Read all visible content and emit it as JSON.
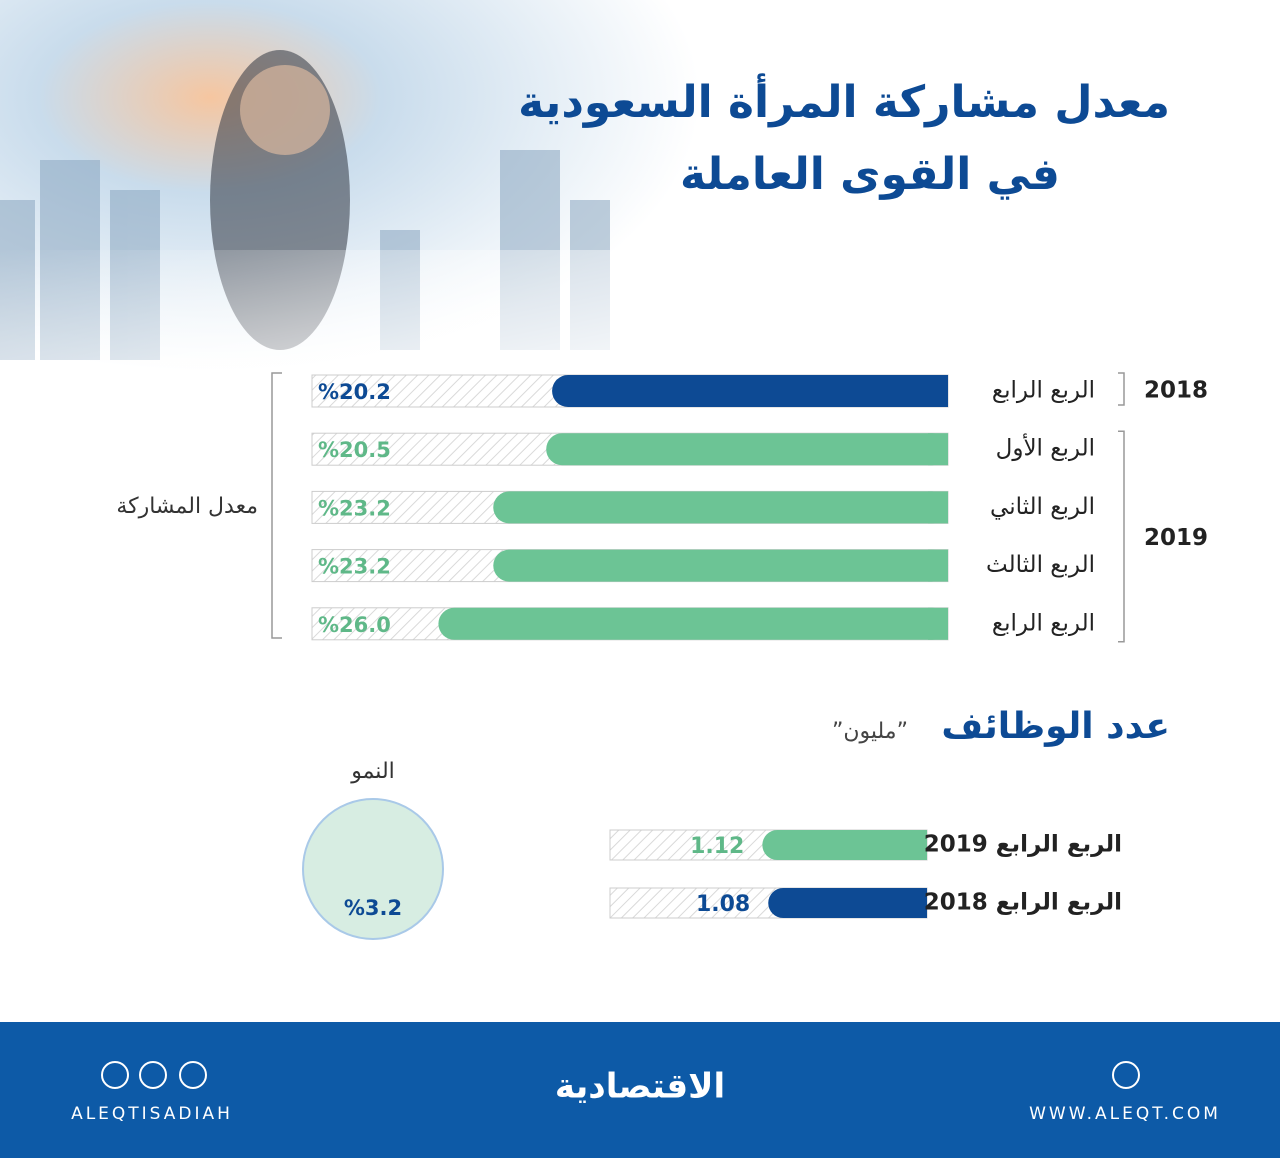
{
  "chart_data": [
    {
      "type": "bar",
      "orientation": "horizontal",
      "title": [
        "معدل مشاركة المرأة السعودية",
        "في القوى العاملة"
      ],
      "ylabel": "معدل المشاركة",
      "groups": [
        {
          "name": "2018",
          "color": "#0d4a94",
          "categories": [
            "الربع الرابع"
          ],
          "values": [
            20.2
          ],
          "value_labels": [
            "%20.2"
          ]
        },
        {
          "name": "2019",
          "color": "#6cc495",
          "categories": [
            "الربع الأول",
            "الربع الثاني",
            "الربع الثالث",
            "الربع الرابع"
          ],
          "values": [
            20.5,
            23.2,
            23.2,
            26.0
          ],
          "value_labels": [
            "%20.5",
            "%23.2",
            "%23.2",
            "%26.0"
          ]
        }
      ]
    },
    {
      "type": "bar",
      "orientation": "horizontal",
      "title": "عدد الوظائف",
      "subtitle": "”مليون”",
      "categories": [
        "الربع الرابع 2019",
        "الربع الرابع 2018"
      ],
      "values": [
        1.12,
        1.08
      ],
      "colors": [
        "#6cc495",
        "#0d4a94"
      ],
      "growth": {
        "label": "النمو",
        "value": 3.2,
        "value_label": "%3.2"
      }
    },
    {
      "type": "footer",
      "brand": "الاقتصادية",
      "left": "ALEQTISADIAH",
      "right": "WWW.ALEQT.COM"
    }
  ]
}
